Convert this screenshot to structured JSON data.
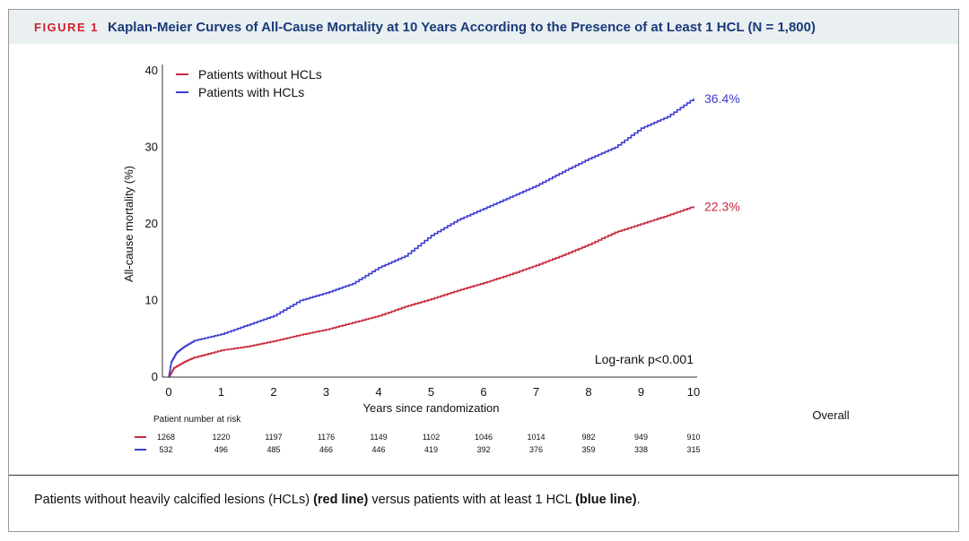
{
  "figure": {
    "label": "FIGURE 1",
    "title": "Kaplan-Meier Curves of All-Cause Mortality at 10 Years According to the Presence of at Least 1 HCL (N = 1,800)"
  },
  "caption": {
    "part1": "Patients without heavily calcified lesions (HCLs) ",
    "bold1": "(red line)",
    "part2": " versus patients with at least 1 HCL ",
    "bold2": "(blue line)",
    "part3": "."
  },
  "chart_data": {
    "type": "line",
    "title": "",
    "xlabel": "Years since randomization",
    "ylabel": "All-cause mortality (%)",
    "xlim": [
      0,
      10
    ],
    "ylim": [
      0,
      40
    ],
    "x_ticks": [
      "0",
      "1",
      "2",
      "3",
      "4",
      "5",
      "6",
      "7",
      "8",
      "9",
      "10"
    ],
    "y_ticks": [
      "0",
      "10",
      "20",
      "30",
      "40"
    ],
    "legend_position": "top-left",
    "annotation": "Log-rank p<0.001",
    "series": [
      {
        "name": "Patients without HCLs",
        "color": "#c8283c",
        "end_label": "22.3%",
        "x": [
          0,
          0.1,
          0.3,
          0.5,
          1,
          1.5,
          2,
          2.5,
          3,
          3.5,
          4,
          4.5,
          5,
          5.5,
          6,
          6.5,
          7,
          7.5,
          8,
          8.5,
          9,
          9.5,
          10
        ],
        "y": [
          0,
          1.2,
          2.0,
          2.6,
          3.5,
          4.0,
          4.7,
          5.5,
          6.2,
          7.1,
          8.0,
          9.2,
          10.2,
          11.3,
          12.3,
          13.4,
          14.6,
          15.9,
          17.3,
          18.9,
          20.0,
          21.1,
          22.3
        ]
      },
      {
        "name": "Patients with HCLs",
        "color": "#3c3cd2",
        "end_label": "36.4%",
        "x": [
          0,
          0.05,
          0.15,
          0.3,
          0.5,
          1,
          1.5,
          2,
          2.5,
          3,
          3.5,
          4,
          4.5,
          5,
          5.5,
          6,
          6.5,
          7,
          7.5,
          8,
          8.5,
          9,
          9.5,
          10
        ],
        "y": [
          0,
          2.0,
          3.2,
          4.0,
          4.8,
          5.6,
          6.8,
          8.0,
          10.0,
          11.0,
          12.2,
          14.3,
          15.8,
          18.5,
          20.5,
          22.0,
          23.5,
          25.0,
          26.8,
          28.5,
          30.0,
          32.5,
          34.0,
          36.4
        ]
      }
    ],
    "risk_table": {
      "title": "Patient number at risk",
      "overall_label": "Overall",
      "rows": [
        {
          "series": "Patients without HCLs",
          "color": "#c8283c",
          "values": [
            "1268",
            "1220",
            "1197",
            "1176",
            "1149",
            "1102",
            "1046",
            "1014",
            "982",
            "949",
            "910"
          ]
        },
        {
          "series": "Patients with HCLs",
          "color": "#3c3cd2",
          "values": [
            "532",
            "496",
            "485",
            "466",
            "446",
            "419",
            "392",
            "376",
            "359",
            "338",
            "315"
          ]
        }
      ]
    }
  }
}
